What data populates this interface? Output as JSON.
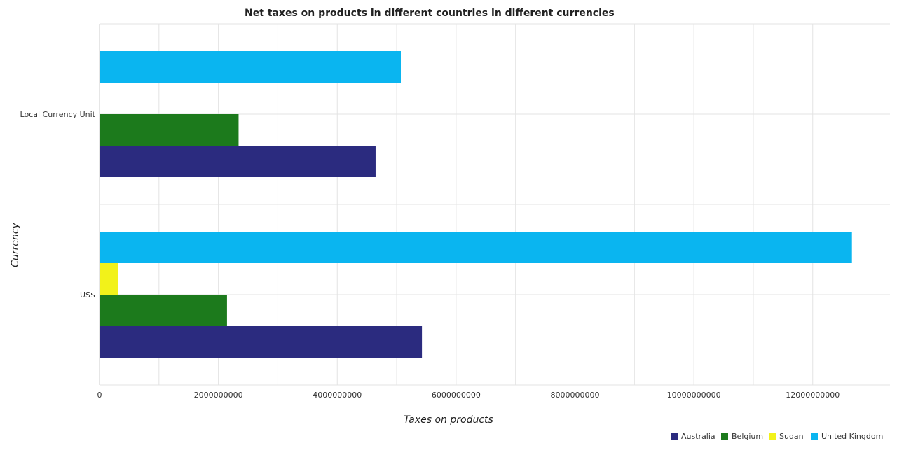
{
  "chart_data": {
    "type": "bar",
    "orientation": "horizontal",
    "title": "Net taxes on products in different countries in different currencies",
    "xlabel": "Taxes on products",
    "ylabel": "Currency",
    "categories": [
      "Local Currency Unit",
      "US$"
    ],
    "series": [
      {
        "name": "Australia",
        "color": "#2b2b7f",
        "values": [
          4645000000,
          5425000000
        ]
      },
      {
        "name": "Belgium",
        "color": "#1c7a1c",
        "values": [
          2340000000,
          2145000000
        ]
      },
      {
        "name": "Sudan",
        "color": "#f2f21a",
        "values": [
          5000000,
          315000000
        ]
      },
      {
        "name": "United Kingdom",
        "color": "#0ab5f0",
        "values": [
          5070000000,
          12660000000
        ]
      }
    ],
    "xlim": [
      0,
      13300000000
    ],
    "xticks": [
      0,
      2000000000,
      4000000000,
      6000000000,
      8000000000,
      10000000000,
      12000000000
    ],
    "xtick_labels": [
      "0",
      "2000000000",
      "4000000000",
      "6000000000",
      "8000000000",
      "10000000000",
      "12000000000"
    ],
    "grid": true,
    "legend_position": "bottom-right"
  }
}
